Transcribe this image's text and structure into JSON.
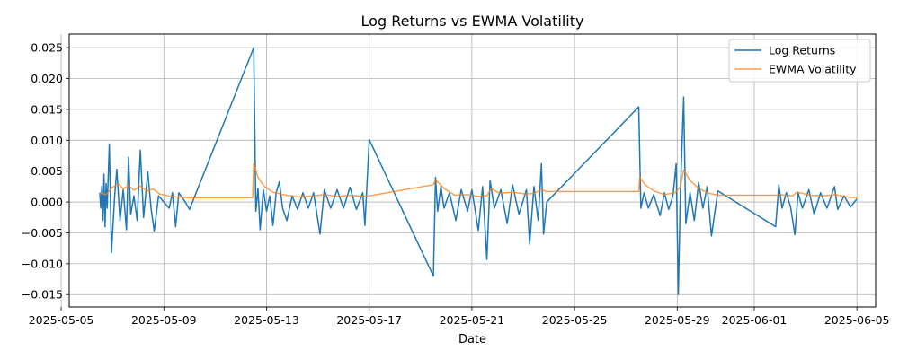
{
  "chart_data": {
    "type": "line",
    "title": "Log Returns vs EWMA Volatility",
    "xlabel": "Date",
    "ylabel": "",
    "xlim": [
      "2025-05-05T07:30",
      "2025-06-05T17:30"
    ],
    "ylim": [
      -0.017,
      0.0272
    ],
    "grid": true,
    "legend_position": "top-right",
    "x_ticks": [
      {
        "date": "2025-05-05",
        "label": "2025-05-05"
      },
      {
        "date": "2025-05-09",
        "label": "2025-05-09"
      },
      {
        "date": "2025-05-13",
        "label": "2025-05-13"
      },
      {
        "date": "2025-05-17",
        "label": "2025-05-17"
      },
      {
        "date": "2025-05-21",
        "label": "2025-05-21"
      },
      {
        "date": "2025-05-25",
        "label": "2025-05-25"
      },
      {
        "date": "2025-05-29",
        "label": "2025-05-29"
      },
      {
        "date": "2025-06-01",
        "label": "2025-06-01"
      },
      {
        "date": "2025-06-05",
        "label": "2025-06-05"
      }
    ],
    "y_ticks": [
      {
        "value": -0.015,
        "label": "−0.015"
      },
      {
        "value": -0.01,
        "label": "−0.010"
      },
      {
        "value": -0.005,
        "label": "−0.005"
      },
      {
        "value": 0.0,
        "label": "0.000"
      },
      {
        "value": 0.005,
        "label": "0.005"
      },
      {
        "value": 0.01,
        "label": "0.010"
      },
      {
        "value": 0.015,
        "label": "0.015"
      },
      {
        "value": 0.02,
        "label": "0.020"
      },
      {
        "value": 0.025,
        "label": "0.025"
      }
    ],
    "series": [
      {
        "name": "Log Returns",
        "color": "#1f77b4",
        "points": [
          [
            "2025-05-06T12:00",
            0.0015
          ],
          [
            "2025-05-06T13:00",
            -0.001
          ],
          [
            "2025-05-06T14:00",
            0.0025
          ],
          [
            "2025-05-06T15:00",
            -0.003
          ],
          [
            "2025-05-06T16:00",
            0.0045
          ],
          [
            "2025-05-06T17:00",
            -0.004
          ],
          [
            "2025-05-06T18:00",
            0.003
          ],
          [
            "2025-05-06T19:00",
            -0.001
          ],
          [
            "2025-05-06T21:00",
            0.0094
          ],
          [
            "2025-05-06T23:00",
            -0.0082
          ],
          [
            "2025-05-07T02:00",
            0.001
          ],
          [
            "2025-05-07T04:00",
            0.0053
          ],
          [
            "2025-05-07T07:00",
            -0.003
          ],
          [
            "2025-05-07T10:00",
            0.002
          ],
          [
            "2025-05-07T13:00",
            -0.0045
          ],
          [
            "2025-05-07T15:00",
            0.0073
          ],
          [
            "2025-05-07T17:00",
            -0.002
          ],
          [
            "2025-05-07T20:00",
            0.001
          ],
          [
            "2025-05-07T23:00",
            -0.003
          ],
          [
            "2025-05-08T02:00",
            0.0084
          ],
          [
            "2025-05-08T05:00",
            -0.0025
          ],
          [
            "2025-05-08T09:00",
            0.0049
          ],
          [
            "2025-05-08T12:00",
            -0.001
          ],
          [
            "2025-05-08T15:00",
            -0.0047
          ],
          [
            "2025-05-08T19:00",
            0.001
          ],
          [
            "2025-05-09T05:00",
            -0.001
          ],
          [
            "2025-05-09T08:00",
            0.0015
          ],
          [
            "2025-05-09T11:00",
            -0.004
          ],
          [
            "2025-05-09T14:00",
            0.0015
          ],
          [
            "2025-05-09T20:00",
            0.0
          ],
          [
            "2025-05-10T00:00",
            -0.0012
          ],
          [
            "2025-05-12T12:00",
            0.025
          ],
          [
            "2025-05-12T14:00",
            -0.0015
          ],
          [
            "2025-05-12T16:00",
            0.0022
          ],
          [
            "2025-05-12T18:00",
            -0.0045
          ],
          [
            "2025-05-12T21:00",
            0.002
          ],
          [
            "2025-05-13T00:00",
            -0.0015
          ],
          [
            "2025-05-13T03:00",
            0.001
          ],
          [
            "2025-05-13T06:00",
            -0.0038
          ],
          [
            "2025-05-13T09:00",
            0.0015
          ],
          [
            "2025-05-13T12:00",
            0.0033
          ],
          [
            "2025-05-13T15:00",
            -0.001
          ],
          [
            "2025-05-13T19:00",
            -0.003
          ],
          [
            "2025-05-14T00:00",
            0.001
          ],
          [
            "2025-05-14T05:00",
            -0.0012
          ],
          [
            "2025-05-14T10:00",
            0.0015
          ],
          [
            "2025-05-14T15:00",
            -0.001
          ],
          [
            "2025-05-14T20:00",
            0.0015
          ],
          [
            "2025-05-15T02:00",
            -0.0052
          ],
          [
            "2025-05-15T06:00",
            0.002
          ],
          [
            "2025-05-15T12:00",
            -0.001
          ],
          [
            "2025-05-15T18:00",
            0.002
          ],
          [
            "2025-05-16T00:00",
            -0.001
          ],
          [
            "2025-05-16T06:00",
            0.0024
          ],
          [
            "2025-05-16T12:00",
            -0.0012
          ],
          [
            "2025-05-16T18:00",
            0.0015
          ],
          [
            "2025-05-16T20:00",
            -0.0038
          ],
          [
            "2025-05-17T00:00",
            0.0101
          ],
          [
            "2025-05-19T12:00",
            -0.012
          ],
          [
            "2025-05-19T14:00",
            0.004
          ],
          [
            "2025-05-19T16:00",
            -0.0015
          ],
          [
            "2025-05-19T19:00",
            0.0025
          ],
          [
            "2025-05-19T22:00",
            -0.001
          ],
          [
            "2025-05-20T03:00",
            0.0015
          ],
          [
            "2025-05-20T09:00",
            -0.003
          ],
          [
            "2025-05-20T14:00",
            0.002
          ],
          [
            "2025-05-20T20:00",
            -0.0015
          ],
          [
            "2025-05-21T00:00",
            0.002
          ],
          [
            "2025-05-21T06:00",
            -0.0046
          ],
          [
            "2025-05-21T10:00",
            0.0025
          ],
          [
            "2025-05-21T14:00",
            -0.0093
          ],
          [
            "2025-05-21T17:00",
            0.0035
          ],
          [
            "2025-05-21T21:00",
            -0.001
          ],
          [
            "2025-05-22T03:00",
            0.002
          ],
          [
            "2025-05-22T09:00",
            -0.0035
          ],
          [
            "2025-05-22T14:00",
            0.0028
          ],
          [
            "2025-05-22T20:00",
            -0.002
          ],
          [
            "2025-05-23T03:00",
            0.002
          ],
          [
            "2025-05-23T06:00",
            -0.0068
          ],
          [
            "2025-05-23T10:00",
            0.0025
          ],
          [
            "2025-05-23T14:00",
            -0.003
          ],
          [
            "2025-05-23T17:00",
            0.0062
          ],
          [
            "2025-05-23T19:00",
            -0.0052
          ],
          [
            "2025-05-23T22:00",
            0.0
          ],
          [
            "2025-05-27T12:00",
            0.0154
          ],
          [
            "2025-05-27T14:00",
            -0.001
          ],
          [
            "2025-05-27T17:00",
            0.0015
          ],
          [
            "2025-05-27T21:00",
            -0.001
          ],
          [
            "2025-05-28T02:00",
            0.0012
          ],
          [
            "2025-05-28T08:00",
            -0.0022
          ],
          [
            "2025-05-28T12:00",
            0.0015
          ],
          [
            "2025-05-28T16:00",
            -0.0012
          ],
          [
            "2025-05-28T20:00",
            0.001
          ],
          [
            "2025-05-28T23:00",
            0.0062
          ],
          [
            "2025-05-29T01:00",
            -0.015
          ],
          [
            "2025-05-29T03:00",
            0.002
          ],
          [
            "2025-05-29T06:00",
            0.017
          ],
          [
            "2025-05-29T08:00",
            -0.0035
          ],
          [
            "2025-05-29T12:00",
            0.0015
          ],
          [
            "2025-05-29T16:00",
            -0.003
          ],
          [
            "2025-05-29T20:00",
            0.0032
          ],
          [
            "2025-05-30T00:00",
            -0.001
          ],
          [
            "2025-05-30T04:00",
            0.0025
          ],
          [
            "2025-05-30T08:00",
            -0.0055
          ],
          [
            "2025-05-30T14:00",
            0.0018
          ],
          [
            "2025-06-01T20:00",
            -0.004
          ],
          [
            "2025-06-01T23:00",
            0.0028
          ],
          [
            "2025-06-02T02:00",
            -0.001
          ],
          [
            "2025-06-02T06:00",
            0.0015
          ],
          [
            "2025-06-02T10:00",
            -0.0008
          ],
          [
            "2025-06-02T14:00",
            -0.0053
          ],
          [
            "2025-06-02T17:00",
            0.0015
          ],
          [
            "2025-06-02T21:00",
            -0.001
          ],
          [
            "2025-06-03T03:00",
            0.002
          ],
          [
            "2025-06-03T08:00",
            -0.002
          ],
          [
            "2025-06-03T14:00",
            0.0015
          ],
          [
            "2025-06-03T20:00",
            -0.001
          ],
          [
            "2025-06-04T03:00",
            0.0025
          ],
          [
            "2025-06-04T06:00",
            -0.0012
          ],
          [
            "2025-06-04T12:00",
            0.001
          ],
          [
            "2025-06-04T18:00",
            -0.0008
          ],
          [
            "2025-06-05T00:00",
            0.0005
          ]
        ]
      },
      {
        "name": "EWMA Volatility",
        "color": "#ff7f0e",
        "points": [
          [
            "2025-05-06T12:00",
            0.0015
          ],
          [
            "2025-05-06T18:00",
            0.0012
          ],
          [
            "2025-05-07T00:00",
            0.0024
          ],
          [
            "2025-05-07T06:00",
            0.0029
          ],
          [
            "2025-05-07T10:00",
            0.0021
          ],
          [
            "2025-05-07T15:00",
            0.0027
          ],
          [
            "2025-05-07T20:00",
            0.0019
          ],
          [
            "2025-05-08T02:00",
            0.0026
          ],
          [
            "2025-05-08T08:00",
            0.0018
          ],
          [
            "2025-05-08T14:00",
            0.0021
          ],
          [
            "2025-05-08T20:00",
            0.0013
          ],
          [
            "2025-05-09T04:00",
            0.001
          ],
          [
            "2025-05-09T12:00",
            0.0008
          ],
          [
            "2025-05-10T00:00",
            0.0007
          ],
          [
            "2025-05-12T11:00",
            0.0007
          ],
          [
            "2025-05-12T12:00",
            0.0062
          ],
          [
            "2025-05-12T16:00",
            0.004
          ],
          [
            "2025-05-12T22:00",
            0.0025
          ],
          [
            "2025-05-13T06:00",
            0.0016
          ],
          [
            "2025-05-13T18:00",
            0.0011
          ],
          [
            "2025-05-14T08:00",
            0.0008
          ],
          [
            "2025-05-14T20:00",
            0.001
          ],
          [
            "2025-05-15T06:00",
            0.0012
          ],
          [
            "2025-05-15T18:00",
            0.0009
          ],
          [
            "2025-05-16T06:00",
            0.0011
          ],
          [
            "2025-05-16T18:00",
            0.0009
          ],
          [
            "2025-05-17T00:00",
            0.001
          ],
          [
            "2025-05-19T12:00",
            0.0028
          ],
          [
            "2025-05-19T14:00",
            0.0036
          ],
          [
            "2025-05-19T22:00",
            0.0022
          ],
          [
            "2025-05-20T08:00",
            0.0011
          ],
          [
            "2025-05-20T20:00",
            0.0012
          ],
          [
            "2025-05-21T06:00",
            0.0009
          ],
          [
            "2025-05-21T14:00",
            0.001
          ],
          [
            "2025-05-21T18:00",
            0.0022
          ],
          [
            "2025-05-22T02:00",
            0.0014
          ],
          [
            "2025-05-22T14:00",
            0.0016
          ],
          [
            "2025-05-23T02:00",
            0.0013
          ],
          [
            "2025-05-23T10:00",
            0.0014
          ],
          [
            "2025-05-23T17:00",
            0.002
          ],
          [
            "2025-05-23T22:00",
            0.0017
          ],
          [
            "2025-05-27T12:00",
            0.0017
          ],
          [
            "2025-05-27T13:00",
            0.004
          ],
          [
            "2025-05-27T18:00",
            0.0028
          ],
          [
            "2025-05-28T02:00",
            0.0018
          ],
          [
            "2025-05-28T12:00",
            0.0012
          ],
          [
            "2025-05-28T22:00",
            0.0015
          ],
          [
            "2025-05-29T03:00",
            0.0025
          ],
          [
            "2025-05-29T06:00",
            0.0052
          ],
          [
            "2025-05-29T12:00",
            0.0035
          ],
          [
            "2025-05-29T20:00",
            0.0022
          ],
          [
            "2025-05-30T06:00",
            0.0014
          ],
          [
            "2025-05-30T14:00",
            0.0011
          ],
          [
            "2025-06-01T20:00",
            0.0011
          ],
          [
            "2025-06-02T00:00",
            0.0012
          ],
          [
            "2025-06-02T12:00",
            0.001
          ],
          [
            "2025-06-02T16:00",
            0.0016
          ],
          [
            "2025-06-03T04:00",
            0.0011
          ],
          [
            "2025-06-03T16:00",
            0.001
          ],
          [
            "2025-06-04T04:00",
            0.0012
          ],
          [
            "2025-06-04T16:00",
            0.0008
          ],
          [
            "2025-06-05T00:00",
            0.0007
          ]
        ]
      }
    ]
  }
}
